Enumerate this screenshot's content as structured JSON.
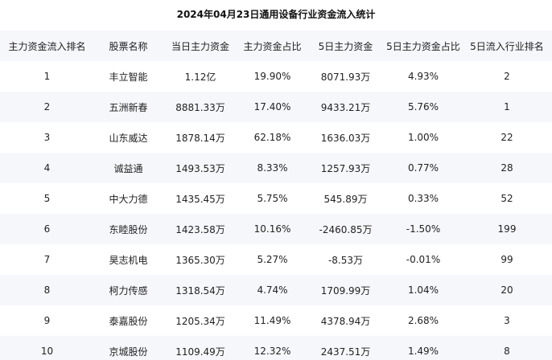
{
  "title": "2024年04月23日通用设备行业资金流入统计",
  "columns": [
    "主力资金流入排名",
    "股票名称",
    "当日主力资金",
    "主力资金占比",
    "5日主力资金",
    "5日主力资金占比",
    "5日流入行业排名"
  ],
  "rows": [
    [
      "1",
      "丰立智能",
      "1.12亿",
      "19.90%",
      "8071.93万",
      "4.93%",
      "2"
    ],
    [
      "2",
      "五洲新春",
      "8881.33万",
      "17.40%",
      "9433.21万",
      "5.76%",
      "1"
    ],
    [
      "3",
      "山东威达",
      "1878.14万",
      "62.18%",
      "1636.03万",
      "1.00%",
      "22"
    ],
    [
      "4",
      "诚益通",
      "1493.53万",
      "8.33%",
      "1257.93万",
      "0.77%",
      "28"
    ],
    [
      "5",
      "中大力德",
      "1435.45万",
      "5.75%",
      "545.89万",
      "0.33%",
      "52"
    ],
    [
      "6",
      "东睦股份",
      "1423.58万",
      "10.16%",
      "-2460.85万",
      "-1.50%",
      "199"
    ],
    [
      "7",
      "昊志机电",
      "1365.30万",
      "5.27%",
      "-8.53万",
      "-0.01%",
      "99"
    ],
    [
      "8",
      "柯力传感",
      "1318.54万",
      "4.74%",
      "1709.99万",
      "1.04%",
      "20"
    ],
    [
      "9",
      "泰嘉股份",
      "1205.34万",
      "11.49%",
      "4378.94万",
      "2.68%",
      "3"
    ],
    [
      "10",
      "京城股份",
      "1109.49万",
      "12.32%",
      "2437.51万",
      "1.49%",
      "8"
    ]
  ]
}
